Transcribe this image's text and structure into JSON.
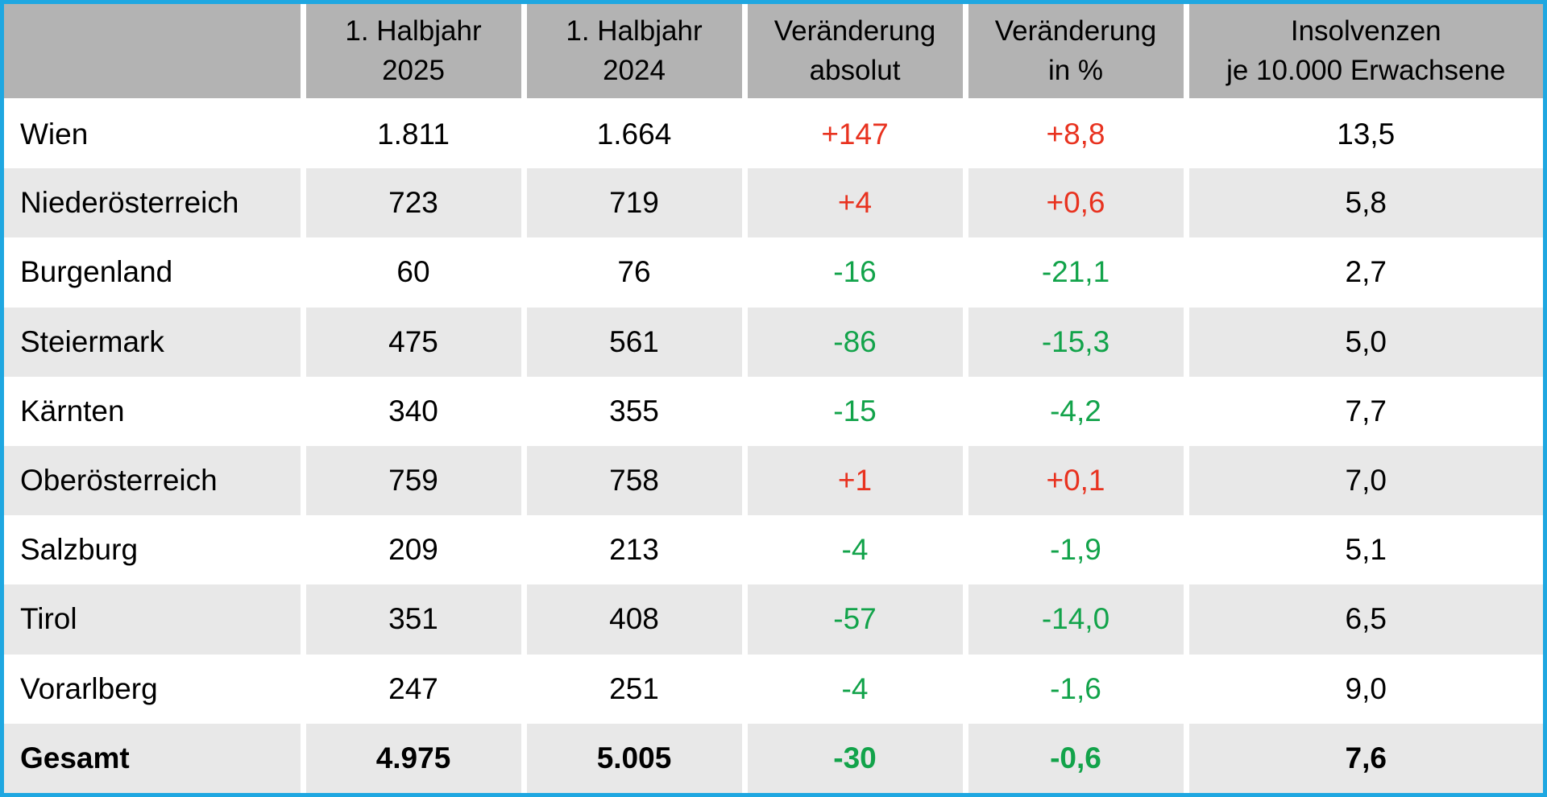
{
  "table": {
    "headers": [
      [
        "",
        ""
      ],
      [
        "1. Halbjahr",
        "2025"
      ],
      [
        "1. Halbjahr",
        "2024"
      ],
      [
        "Veränderung",
        "absolut"
      ],
      [
        "Veränderung",
        "in %"
      ],
      [
        "Insolvenzen",
        "je 10.000 Erwachsene"
      ]
    ],
    "rows": [
      {
        "region": "Wien",
        "h2025": "1.811",
        "h2024": "1.664",
        "abs": "+147",
        "pct": "+8,8",
        "per10k": "13,5",
        "trend": "up"
      },
      {
        "region": "Niederösterreich",
        "h2025": "723",
        "h2024": "719",
        "abs": "+4",
        "pct": "+0,6",
        "per10k": "5,8",
        "trend": "up"
      },
      {
        "region": "Burgenland",
        "h2025": "60",
        "h2024": "76",
        "abs": "-16",
        "pct": "-21,1",
        "per10k": "2,7",
        "trend": "down"
      },
      {
        "region": "Steiermark",
        "h2025": "475",
        "h2024": "561",
        "abs": "-86",
        "pct": "-15,3",
        "per10k": "5,0",
        "trend": "down"
      },
      {
        "region": "Kärnten",
        "h2025": "340",
        "h2024": "355",
        "abs": "-15",
        "pct": "-4,2",
        "per10k": "7,7",
        "trend": "down"
      },
      {
        "region": "Oberösterreich",
        "h2025": "759",
        "h2024": "758",
        "abs": "+1",
        "pct": "+0,1",
        "per10k": "7,0",
        "trend": "up"
      },
      {
        "region": "Salzburg",
        "h2025": "209",
        "h2024": "213",
        "abs": "-4",
        "pct": "-1,9",
        "per10k": "5,1",
        "trend": "down"
      },
      {
        "region": "Tirol",
        "h2025": "351",
        "h2024": "408",
        "abs": "-57",
        "pct": "-14,0",
        "per10k": "6,5",
        "trend": "down"
      },
      {
        "region": "Vorarlberg",
        "h2025": "247",
        "h2024": "251",
        "abs": "-4",
        "pct": "-1,6",
        "per10k": "9,0",
        "trend": "down"
      }
    ],
    "total": {
      "region": "Gesamt",
      "h2025": "4.975",
      "h2024": "5.005",
      "abs": "-30",
      "pct": "-0,6",
      "per10k": "7,6",
      "trend": "down"
    }
  },
  "colors": {
    "border": "#1fa7e1",
    "header_bg": "#b3b3b3",
    "stripe_bg": "#e8e8e8",
    "increase": "#e8321f",
    "decrease": "#12a34a"
  }
}
